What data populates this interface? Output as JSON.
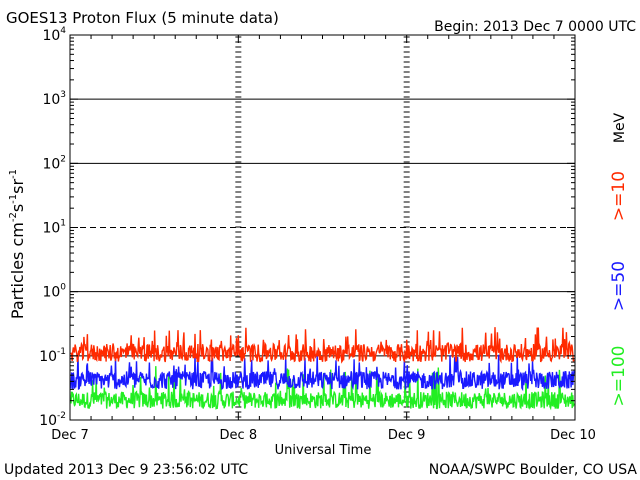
{
  "header": {
    "title": "GOES13 Proton Flux (5 minute data)",
    "begin": "Begin: 2013 Dec 7 0000 UTC"
  },
  "footer": {
    "updated": "Updated 2013 Dec  9 23:56:02 UTC",
    "source": "NOAA/SWPC Boulder, CO USA"
  },
  "colors": {
    "series_10": "#ff2a00",
    "series_50": "#1a1aff",
    "series_100": "#22ee22",
    "axis": "#000000"
  },
  "chart_data": {
    "type": "line",
    "title": "GOES13 Proton Flux (5 minute data)",
    "xlabel": "Universal Time",
    "ylabel": "Particles cm⁻²s⁻¹sr⁻¹",
    "yscale": "log",
    "ylim": [
      0.01,
      10000
    ],
    "yticks": [
      {
        "value": 10000,
        "base": "10",
        "exp": "4"
      },
      {
        "value": 1000,
        "base": "10",
        "exp": "3"
      },
      {
        "value": 100,
        "base": "10",
        "exp": "2"
      },
      {
        "value": 10,
        "base": "10",
        "exp": "1"
      },
      {
        "value": 1,
        "base": "10",
        "exp": "0"
      },
      {
        "value": 0.1,
        "base": "10",
        "exp": "-1"
      },
      {
        "value": 0.01,
        "base": "10",
        "exp": "-2"
      }
    ],
    "xlim": [
      "2013-12-07",
      "2013-12-10"
    ],
    "xticks": [
      "Dec 7",
      "Dec 8",
      "Dec 9",
      "Dec 10"
    ],
    "thresholds": [
      {
        "value": 1000,
        "style": "solid"
      },
      {
        "value": 100,
        "style": "solid"
      },
      {
        "value": 10,
        "style": "dashed"
      },
      {
        "value": 1,
        "style": "solid"
      },
      {
        "value": 0.1,
        "style": "solid"
      }
    ],
    "energy_unit": "MeV",
    "series": [
      {
        "name": ">=10",
        "color": "#ff2a00",
        "typical": 0.12,
        "low": 0.08,
        "high": 0.28
      },
      {
        "name": ">=50",
        "color": "#1a1aff",
        "typical": 0.045,
        "low": 0.03,
        "high": 0.11
      },
      {
        "name": ">=100",
        "color": "#22ee22",
        "typical": 0.022,
        "low": 0.015,
        "high": 0.07
      }
    ]
  }
}
